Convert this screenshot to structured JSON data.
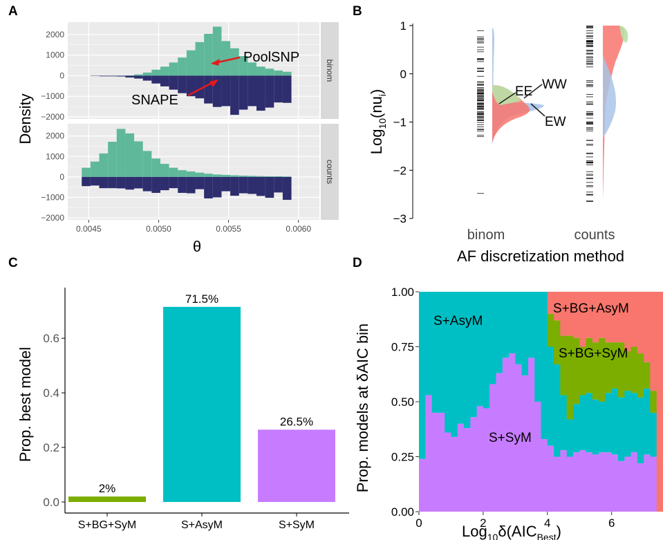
{
  "colors": {
    "poolsnp": "#5fb89a",
    "snape": "#2e2d6e",
    "panel_bg": "#ebebeb",
    "strip_bg": "#d9d9d9",
    "grid": "#ffffff",
    "ee": "#f8766d",
    "ww": "#b8e0a6",
    "ew": "#a9c4e8",
    "bar_bgsym": "#7cae00",
    "bar_asym": "#00bfc4",
    "bar_sym": "#c77cff",
    "arrow": "#e31a1c"
  },
  "chart_data": [
    {
      "panel": "A",
      "type": "bar",
      "xlabel": "θ",
      "ylabel": "Density",
      "xlim": [
        0.00435,
        0.00615
      ],
      "ylim": [
        -2100,
        2600
      ],
      "x_ticks": [
        "0.0045",
        "0.0050",
        "0.0055",
        "0.0060"
      ],
      "x_tick_values": [
        0.0045,
        0.005,
        0.0055,
        0.006
      ],
      "y_ticks": [
        -2000,
        -1000,
        0,
        1000,
        2000
      ],
      "y_tick_labels": [
        "−2000",
        "−1000",
        "0",
        "1000",
        "2000"
      ],
      "bin_start": 0.00445,
      "bin_width": 6.25e-05,
      "annotations": [
        "PoolSNP",
        "SNAPE"
      ],
      "facets": [
        {
          "strip": "binom",
          "poolsnp": [
            0,
            0,
            0,
            0,
            0,
            10,
            60,
            150,
            290,
            440,
            640,
            880,
            1230,
            1630,
            2030,
            2380,
            1680,
            1330,
            950,
            640,
            440,
            340,
            250,
            190
          ],
          "snape": [
            0,
            -15,
            -30,
            -30,
            -40,
            -90,
            -140,
            -240,
            -380,
            -520,
            -680,
            -850,
            -1000,
            -1100,
            -1350,
            -1520,
            -1480,
            -1900,
            -1650,
            -1480,
            -1700,
            -1550,
            -1300,
            -1320
          ]
        },
        {
          "strip": "counts",
          "poolsnp": [
            450,
            750,
            1150,
            1720,
            2350,
            2130,
            1740,
            1270,
            900,
            640,
            450,
            330,
            270,
            210,
            160,
            120,
            100,
            80,
            65,
            50,
            40,
            30,
            30,
            20
          ],
          "snape": [
            -450,
            -420,
            -550,
            -550,
            -560,
            -620,
            -560,
            -700,
            -780,
            -650,
            -550,
            -780,
            -800,
            -600,
            -1050,
            -1000,
            -700,
            -920,
            -800,
            -830,
            -930,
            -1020,
            -760,
            -1120
          ]
        }
      ]
    },
    {
      "panel": "B",
      "type": "area",
      "xlabel": "AF discretization method",
      "ylabel": "Log₁₀(nu_i)",
      "ylim": [
        -3,
        1
      ],
      "y_ticks": [
        -3,
        -2,
        -1,
        0,
        1
      ],
      "y_tick_labels": [
        "−3",
        "−2",
        "−1",
        "0",
        "1"
      ],
      "categories": [
        "binom",
        "counts"
      ],
      "series": [
        {
          "name": "EE",
          "color_key": "ee",
          "binom_range": [
            -1.35,
            -0.15
          ],
          "counts_range": [
            -2.45,
            1.0
          ]
        },
        {
          "name": "WW",
          "color_key": "ww",
          "binom_range": [
            -0.9,
            -0.2
          ],
          "counts_range": [
            0.5,
            1.0
          ]
        },
        {
          "name": "EW",
          "color_key": "ew",
          "binom_range": [
            -1.7,
            1.0
          ],
          "counts_range": [
            -1.5,
            1.0
          ]
        }
      ]
    },
    {
      "panel": "C",
      "type": "bar",
      "ylabel": "Prop. best model",
      "categories": [
        "S+BG+SyM",
        "S+AsyM",
        "S+SyM"
      ],
      "values": [
        0.02,
        0.715,
        0.265
      ],
      "value_labels": [
        "2%",
        "71.5%",
        "26.5%"
      ],
      "color_keys": [
        "bar_bgsym",
        "bar_asym",
        "bar_sym"
      ],
      "ylim": [
        0,
        0.75
      ],
      "y_ticks": [
        0.0,
        0.2,
        0.4,
        0.6
      ],
      "y_tick_labels": [
        "0.0",
        "0.2",
        "0.4",
        "0.6"
      ]
    },
    {
      "panel": "D",
      "type": "area",
      "xlabel": "Log₁₀δ(AIC_Best)",
      "ylabel": "Prop. models at δAIC bin",
      "xlim": [
        0,
        7.6
      ],
      "ylim": [
        0,
        1
      ],
      "x_ticks": [
        0,
        2,
        4,
        6
      ],
      "y_ticks": [
        0.0,
        0.25,
        0.5,
        0.75,
        1.0
      ],
      "y_tick_labels": [
        "0.00",
        "0.25",
        "0.50",
        "0.75",
        "1.00"
      ],
      "region_labels": [
        "S+AsyM",
        "S+BG+AsyM",
        "S+BG+SyM",
        "S+SyM"
      ],
      "bin_width": 0.2,
      "series": [
        {
          "name": "S+SyM",
          "color_key": "bar_sym",
          "values": [
            0.24,
            0.53,
            0.45,
            0.45,
            0.36,
            0.34,
            0.4,
            0.38,
            0.43,
            0.48,
            0.47,
            0.58,
            0.63,
            0.7,
            0.72,
            0.67,
            0.62,
            0.7,
            0.5,
            0.33,
            0.3,
            0.25,
            0.28,
            0.25,
            0.27,
            0.28,
            0.27,
            0.26,
            0.27,
            0.27,
            0.26,
            0.23,
            0.25,
            0.27,
            0.22,
            0.26,
            0.25,
            0.0
          ]
        },
        {
          "name": "S+AsyM",
          "color_key": "bar_asym",
          "values": [
            0.76,
            0.47,
            0.55,
            0.55,
            0.64,
            0.66,
            0.6,
            0.62,
            0.57,
            0.52,
            0.53,
            0.42,
            0.37,
            0.3,
            0.28,
            0.33,
            0.38,
            0.3,
            0.5,
            0.67,
            0.45,
            0.42,
            0.25,
            0.17,
            0.22,
            0.25,
            0.27,
            0.25,
            0.23,
            0.27,
            0.3,
            0.29,
            0.3,
            0.27,
            0.3,
            0.3,
            0.2,
            0.0
          ]
        },
        {
          "name": "S+BG+SyM",
          "color_key": "bar_bgsym",
          "values": [
            0,
            0,
            0,
            0,
            0,
            0,
            0,
            0,
            0,
            0,
            0,
            0,
            0,
            0,
            0,
            0,
            0,
            0,
            0,
            0,
            0.15,
            0.2,
            0.27,
            0.38,
            0.3,
            0.22,
            0.25,
            0.26,
            0.29,
            0.23,
            0.21,
            0.25,
            0.18,
            0.21,
            0.2,
            0.12,
            0.1,
            0.0
          ]
        },
        {
          "name": "S+BG+AsyM",
          "color_key": "ee",
          "values": [
            0,
            0,
            0,
            0,
            0,
            0,
            0,
            0,
            0,
            0,
            0,
            0,
            0,
            0,
            0,
            0,
            0,
            0,
            0,
            0,
            0.1,
            0.13,
            0.2,
            0.2,
            0.21,
            0.25,
            0.21,
            0.23,
            0.21,
            0.23,
            0.23,
            0.23,
            0.27,
            0.25,
            0.28,
            0.32,
            0.45,
            1.0
          ]
        }
      ]
    }
  ],
  "panel_letters": [
    "A",
    "B",
    "C",
    "D"
  ],
  "panel_b_labels": {
    "ee": "EE",
    "ww": "WW",
    "ew": "EW",
    "ylabel_main": "Log",
    "ylabel_sub": "10",
    "ylabel_rest": "(nu",
    "ylabel_i": "i",
    "ylabel_close": ")"
  },
  "panel_d_xlabel": {
    "main": "Log",
    "sub": "10",
    "rest": "δ(AIC",
    "sub2": "Best",
    "close": ")"
  }
}
